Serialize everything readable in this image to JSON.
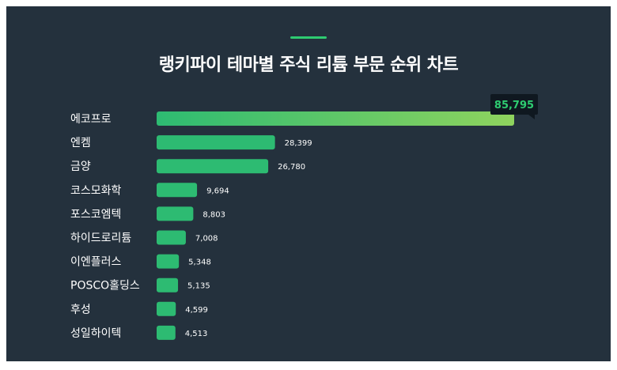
{
  "title": "랭키파이 테마별 주식 리튬 부문 순위 차트",
  "colors": {
    "background": "#24313d",
    "bar": "#2dbb72",
    "bar_gradient_end": "#8fd35e",
    "accent": "#2ecc71",
    "callout_bg": "#0f1820",
    "text": "#ffffff"
  },
  "chart_data": {
    "type": "bar",
    "orientation": "horizontal",
    "title": "랭키파이 테마별 주식 리튬 부문 순위 차트",
    "categories": [
      "에코프로",
      "엔켐",
      "금양",
      "코스모화학",
      "포스코엠텍",
      "하이드로리튬",
      "이엔플러스",
      "POSCO홀딩스",
      "후성",
      "성일하이텍"
    ],
    "values": [
      85795,
      28399,
      26780,
      9694,
      8803,
      7008,
      5348,
      5135,
      4599,
      4513
    ],
    "value_labels": [
      "85,795",
      "28,399",
      "26,780",
      "9,694",
      "8,803",
      "7,008",
      "5,348",
      "5,135",
      "4,599",
      "4,513"
    ],
    "xlim": [
      0,
      85795
    ],
    "grid": false,
    "legend": "none"
  }
}
